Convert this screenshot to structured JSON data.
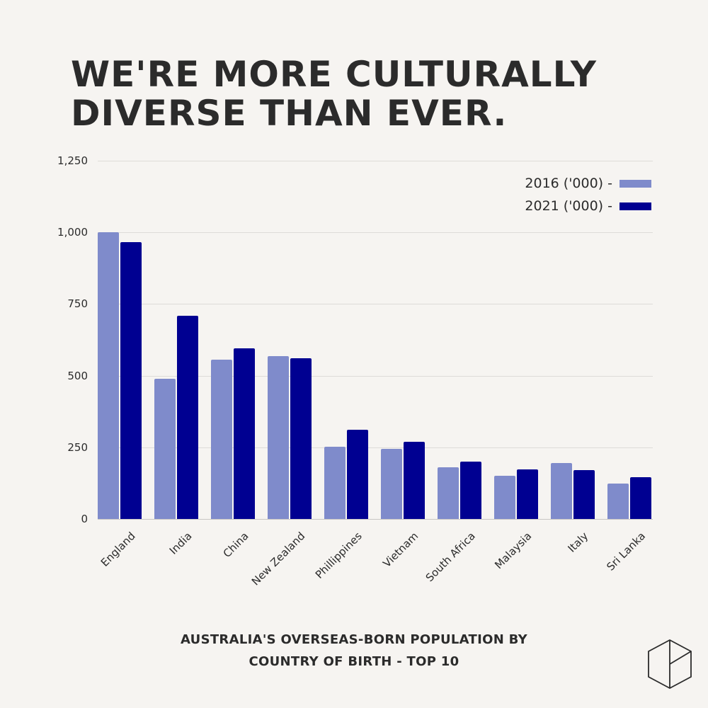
{
  "header": {
    "title_line1": "WE'RE MORE CULTURALLY",
    "title_line2": "DIVERSE THAN EVER."
  },
  "footer": {
    "subtitle_line1": "AUSTRALIA'S OVERSEAS-BORN POPULATION BY",
    "subtitle_line2": "COUNTRY OF BIRTH - TOP 10",
    "logo_icon": "hexagon-cube-logo-icon"
  },
  "legend": [
    {
      "label": "2016 ('000) -",
      "color": "#7f8bcb"
    },
    {
      "label": "2021 ('000) -",
      "color": "#000091"
    }
  ],
  "y_ticks": [
    "0",
    "250",
    "500",
    "750",
    "1,000",
    "1,250"
  ],
  "colors": {
    "background": "#f6f4f1",
    "text": "#2b2b2b",
    "series_2016": "#7f8bcb",
    "series_2021": "#000091"
  },
  "chart_data": {
    "type": "bar",
    "title": "WE'RE MORE CULTURALLY DIVERSE THAN EVER.",
    "subtitle": "AUSTRALIA'S OVERSEAS-BORN POPULATION BY COUNTRY OF BIRTH - TOP 10",
    "xlabel": "",
    "ylabel": "",
    "ylim": [
      0,
      1250
    ],
    "yticks": [
      0,
      250,
      500,
      750,
      1000,
      1250
    ],
    "grid": true,
    "legend_position": "top-right",
    "categories": [
      "England",
      "India",
      "China",
      "New Zealand",
      "Phillippines",
      "Vietnam",
      "South Africa",
      "Malaysia",
      "Italy",
      "Sri Lanka"
    ],
    "series": [
      {
        "name": "2016 ('000)",
        "color": "#7f8bcb",
        "values": [
          1000,
          489,
          556,
          568,
          252,
          245,
          180,
          151,
          195,
          124
        ]
      },
      {
        "name": "2021 ('000)",
        "color": "#000091",
        "values": [
          965,
          709,
          595,
          561,
          311,
          269,
          200,
          173,
          170,
          146
        ]
      }
    ]
  }
}
